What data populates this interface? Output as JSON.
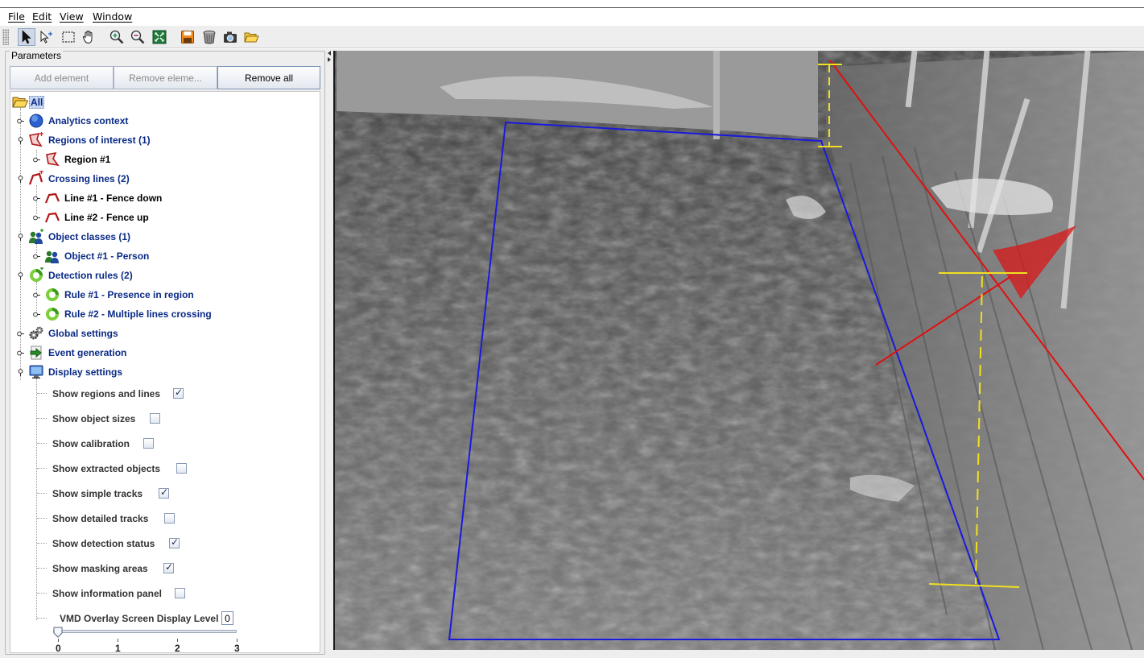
{
  "menu": [
    "File",
    "Edit",
    "View",
    "Window"
  ],
  "toolbar": {
    "icons": [
      "select-arrow-icon",
      "select-point-icon",
      "marquee-select-icon",
      "pan-hand-icon",
      "zoom-in-icon",
      "zoom-out-icon",
      "fit-to-window-icon",
      "save-icon",
      "delete-icon",
      "snapshot-camera-icon",
      "open-folder-icon"
    ],
    "active": "select-arrow-icon"
  },
  "parameters": {
    "title": "Parameters",
    "buttons": {
      "add": "Add element",
      "remove": "Remove eleme...",
      "remove_all": "Remove all"
    }
  },
  "tree": {
    "root": "All",
    "analytics_context": "Analytics context",
    "regions": "Regions of interest (1)",
    "region1": "Region #1",
    "crossing_lines": "Crossing lines (2)",
    "line1": "Line #1 - Fence down",
    "line2": "Line #2 - Fence up",
    "object_classes": "Object classes (1)",
    "object1": "Object #1 - Person",
    "detection_rules": "Detection rules (2)",
    "rule1": "Rule #1 - Presence in region",
    "rule2": "Rule #2 - Multiple lines crossing",
    "global_settings": "Global settings",
    "event_generation": "Event generation",
    "display_settings": "Display settings"
  },
  "display_options": [
    {
      "label": "Show regions and lines",
      "checked": true
    },
    {
      "label": "Show object sizes",
      "checked": false
    },
    {
      "label": "Show calibration",
      "checked": false
    },
    {
      "label": "Show extracted objects",
      "checked": false
    },
    {
      "label": "Show simple tracks",
      "checked": true
    },
    {
      "label": "Show detailed tracks",
      "checked": false
    },
    {
      "label": "Show detection status",
      "checked": true
    },
    {
      "label": "Show masking areas",
      "checked": true
    },
    {
      "label": "Show information panel",
      "checked": false
    }
  ],
  "overlay_level": {
    "label": "VMD Overlay Screen Display Level",
    "value": "0",
    "ticks": [
      "0",
      "1",
      "2",
      "3"
    ],
    "level": 0
  },
  "colors": {
    "region": "#1a1adc",
    "crossing_line": "#e01010",
    "calibration": "#f0e020",
    "tree_text": "#0a2a86",
    "selection": "#c7d5ef"
  }
}
